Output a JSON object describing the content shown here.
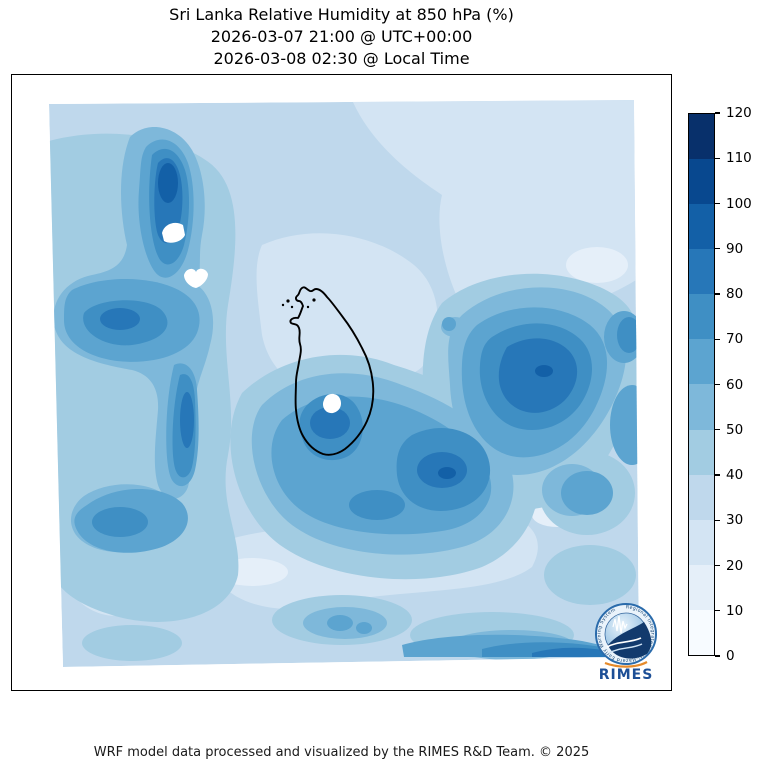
{
  "figure": {
    "title_lines": {
      "variable": "Sri Lanka Relative Humidity at 850 hPa (%)",
      "utc": "2026-03-07 21:00 @ UTC+00:00",
      "local": "2026-03-08 02:30 @ Local Time"
    },
    "footer": "WRF model data processed and visualized by the RIMES R&D Team. © 2025"
  },
  "colorbar": {
    "min": 0,
    "max": 120,
    "step": 10,
    "tick_labels": [
      "0",
      "10",
      "20",
      "30",
      "40",
      "50",
      "60",
      "70",
      "80",
      "90",
      "100",
      "110",
      "120"
    ],
    "band_colors_low_to_high": [
      "#f7fbff",
      "#e5eff9",
      "#d3e4f3",
      "#bfd8ec",
      "#a2cce2",
      "#7eb8da",
      "#5ca4d0",
      "#3f8fc4",
      "#2777b8",
      "#1360a7",
      "#08488f",
      "#08306b"
    ]
  },
  "logo": {
    "wordmark": "RIMES",
    "ring_text": "Regional Integrated Multi-Hazard Early Warning System",
    "accent_blue": "#1d4f96",
    "accent_orange": "#e58a2a"
  },
  "chart_data": {
    "type": "heatmap",
    "subtype": "filled_contour_weather_map",
    "title": "Sri Lanka Relative Humidity at 850 hPa (%)",
    "valid_time_utc": "2026-03-07 21:00 @ UTC+00:00",
    "valid_time_local": "2026-03-08 02:30 @ Local Time",
    "variable": "relative humidity",
    "pressure_level_hPa": 850,
    "units": "%",
    "colormap": "Blues",
    "levels": [
      0,
      10,
      20,
      30,
      40,
      50,
      60,
      70,
      80,
      90,
      100,
      110,
      120
    ],
    "colorbar_range": [
      0,
      120
    ],
    "legend_position": "right vertical colorbar",
    "overlay": "Sri Lanka coastline drawn in black; small white spot over central Sri Lanka",
    "field_summary": [
      {
        "region": "northwest elongated plume",
        "rh_percent": "70-100 with 90-100 core and two small white (<10) holes"
      },
      {
        "region": "west-central mass below plume",
        "rh_percent": "60-90"
      },
      {
        "region": "north and northeast background",
        "rh_percent": "20-40"
      },
      {
        "region": "east of Sri Lanka cell",
        "rh_percent": "70-95 dark maximum touching right edge"
      },
      {
        "region": "south / southwest of Sri Lanka broad maximum",
        "rh_percent": "60-95"
      },
      {
        "region": "light diagonal band east of island",
        "rh_percent": "10-30"
      },
      {
        "region": "bottom edge band (south boundary)",
        "rh_percent": "60-90"
      },
      {
        "region": "overall background",
        "rh_percent": "30-50"
      }
    ]
  }
}
